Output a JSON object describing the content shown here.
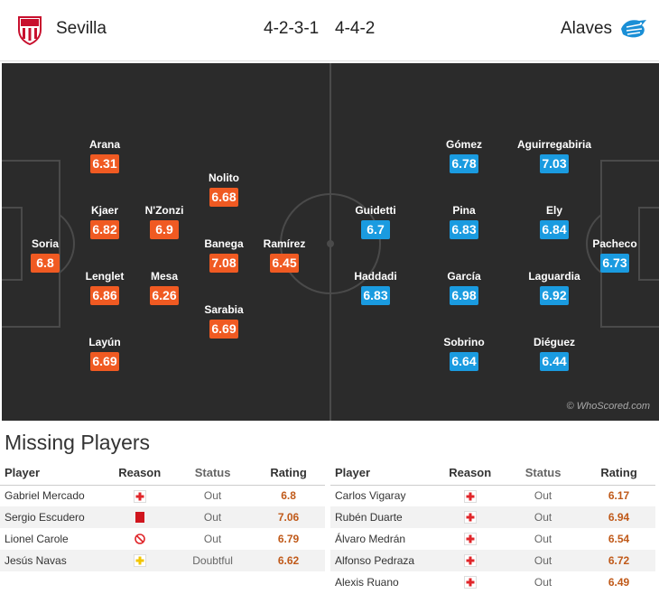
{
  "header": {
    "home_team": "Sevilla",
    "away_team": "Alaves",
    "home_formation": "4-2-3-1",
    "away_formation": "4-4-2"
  },
  "colors": {
    "home_rating_bg": "#f05a22",
    "away_rating_bg": "#1a9be0",
    "pitch": "#2b2b2b"
  },
  "home_players": [
    {
      "name": "Soria",
      "rating": "6.8"
    },
    {
      "name": "Arana",
      "rating": "6.31"
    },
    {
      "name": "Kjaer",
      "rating": "6.82"
    },
    {
      "name": "Lenglet",
      "rating": "6.86"
    },
    {
      "name": "Layún",
      "rating": "6.69"
    },
    {
      "name": "N'Zonzi",
      "rating": "6.9"
    },
    {
      "name": "Mesa",
      "rating": "6.26"
    },
    {
      "name": "Nolito",
      "rating": "6.68"
    },
    {
      "name": "Banega",
      "rating": "7.08"
    },
    {
      "name": "Sarabia",
      "rating": "6.69"
    },
    {
      "name": "Ramírez",
      "rating": "6.45"
    }
  ],
  "away_players": [
    {
      "name": "Guidetti",
      "rating": "6.7"
    },
    {
      "name": "Haddadi",
      "rating": "6.83"
    },
    {
      "name": "Gómez",
      "rating": "6.78"
    },
    {
      "name": "Pina",
      "rating": "6.83"
    },
    {
      "name": "García",
      "rating": "6.98"
    },
    {
      "name": "Sobrino",
      "rating": "6.64"
    },
    {
      "name": "Aguirregabiria",
      "rating": "7.03"
    },
    {
      "name": "Ely",
      "rating": "6.84"
    },
    {
      "name": "Laguardia",
      "rating": "6.92"
    },
    {
      "name": "Diéguez",
      "rating": "6.44"
    },
    {
      "name": "Pacheco",
      "rating": "6.73"
    }
  ],
  "watermark": "© WhoScored.com",
  "missing": {
    "title": "Missing Players",
    "columns": {
      "player": "Player",
      "reason": "Reason",
      "status": "Status",
      "rating": "Rating"
    },
    "home": [
      {
        "player": "Gabriel Mercado",
        "reason_icon": "injury-icon",
        "status": "Out",
        "rating": "6.8"
      },
      {
        "player": "Sergio Escudero",
        "reason_icon": "red-card-icon",
        "status": "Out",
        "rating": "7.06"
      },
      {
        "player": "Lionel Carole",
        "reason_icon": "not-eligible-icon",
        "status": "Out",
        "rating": "6.79"
      },
      {
        "player": "Jesús Navas",
        "reason_icon": "doubtful-injury-icon",
        "status": "Doubtful",
        "rating": "6.62"
      }
    ],
    "away": [
      {
        "player": "Carlos Vigaray",
        "reason_icon": "injury-icon",
        "status": "Out",
        "rating": "6.17"
      },
      {
        "player": "Rubén Duarte",
        "reason_icon": "injury-icon",
        "status": "Out",
        "rating": "6.94"
      },
      {
        "player": "Álvaro Medrán",
        "reason_icon": "injury-icon",
        "status": "Out",
        "rating": "6.54"
      },
      {
        "player": "Alfonso Pedraza",
        "reason_icon": "injury-icon",
        "status": "Out",
        "rating": "6.72"
      },
      {
        "player": "Alexis Ruano",
        "reason_icon": "injury-icon",
        "status": "Out",
        "rating": "6.49"
      }
    ]
  }
}
